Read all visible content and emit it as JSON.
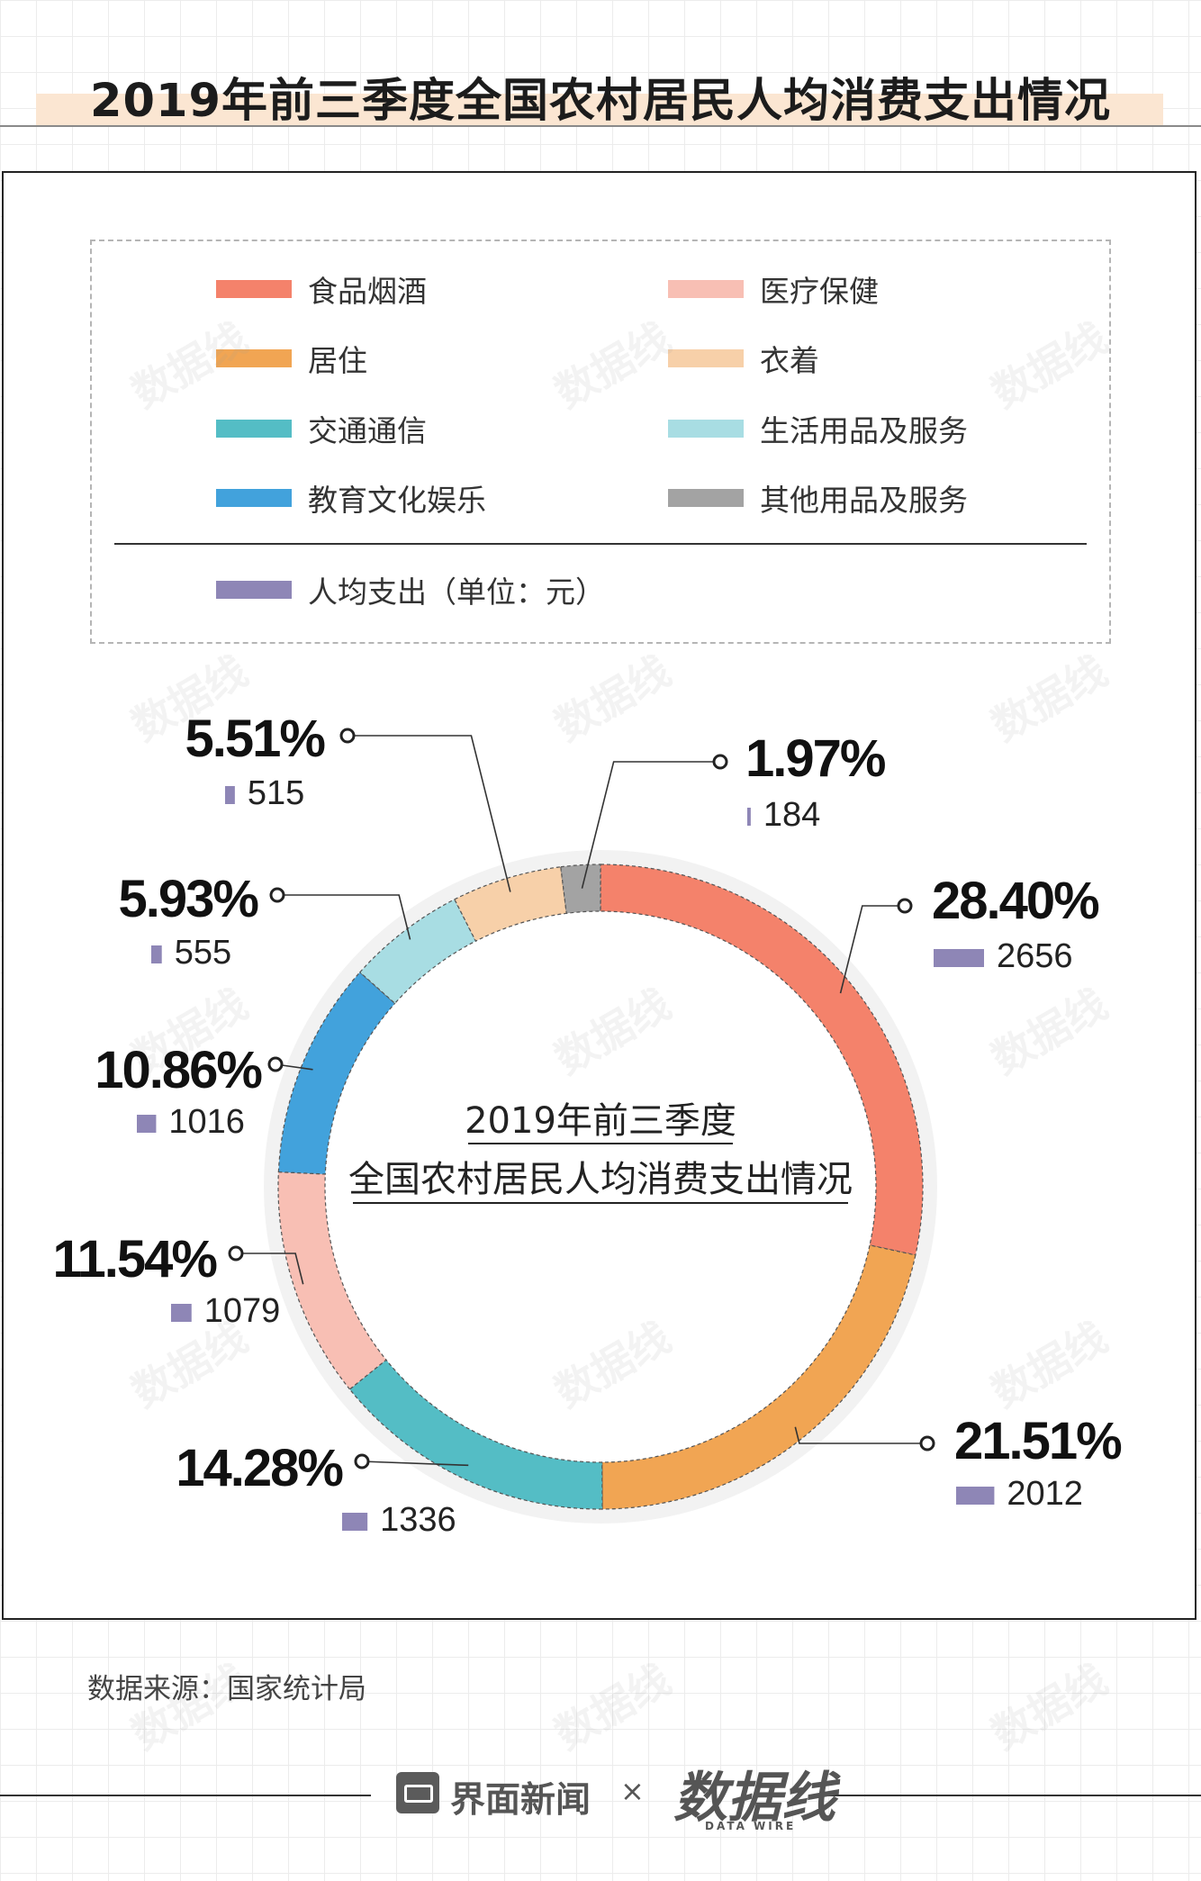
{
  "title": "2019年前三季度全国农村居民人均消费支出情况",
  "legend": [
    {
      "label": "食品烟酒",
      "color": "#f4826b"
    },
    {
      "label": "医疗保健",
      "color": "#f8bfb4"
    },
    {
      "label": "居住",
      "color": "#f1a553"
    },
    {
      "label": "衣着",
      "color": "#f7d0a9"
    },
    {
      "label": "交通通信",
      "color": "#54bdc5"
    },
    {
      "label": "生活用品及服务",
      "color": "#a8dde3"
    },
    {
      "label": "教育文化娱乐",
      "color": "#42a2dc"
    },
    {
      "label": "其他用品及服务",
      "color": "#a3a3a3"
    }
  ],
  "amount_legend": {
    "label": "人均支出（单位：元）",
    "color": "#8e86b6"
  },
  "chart_data": {
    "type": "pie",
    "title": "2019年前三季度全国农村居民人均消费支出情况",
    "center_text": [
      "2019年前三季度",
      "全国农村居民人均消费支出情况"
    ],
    "unit": "元",
    "slices": [
      {
        "name": "食品烟酒",
        "percent": 28.4,
        "percent_label": "28.40%",
        "value": 2656,
        "color": "#f4826b"
      },
      {
        "name": "居住",
        "percent": 21.51,
        "percent_label": "21.51%",
        "value": 2012,
        "color": "#f1a553"
      },
      {
        "name": "交通通信",
        "percent": 14.28,
        "percent_label": "14.28%",
        "value": 1336,
        "color": "#54bdc5"
      },
      {
        "name": "医疗保健",
        "percent": 11.54,
        "percent_label": "11.54%",
        "value": 1079,
        "color": "#f8bfb4"
      },
      {
        "name": "教育文化娱乐",
        "percent": 10.86,
        "percent_label": "10.86%",
        "value": 1016,
        "color": "#42a2dc"
      },
      {
        "name": "生活用品及服务",
        "percent": 5.93,
        "percent_label": "5.93%",
        "value": 555,
        "color": "#a8dde3"
      },
      {
        "name": "衣着",
        "percent": 5.51,
        "percent_label": "5.51%",
        "value": 515,
        "color": "#f7d0a9"
      },
      {
        "name": "其他用品及服务",
        "percent": 1.97,
        "percent_label": "1.97%",
        "value": 184,
        "color": "#a3a3a3"
      }
    ],
    "bar_color": "#8e86b6"
  },
  "source": "数据来源：国家统计局",
  "footer": {
    "brand": "界面新闻",
    "separator": "×",
    "partner": "数据线",
    "partner_sub": "DATA WIRE"
  },
  "watermark": "数据线"
}
